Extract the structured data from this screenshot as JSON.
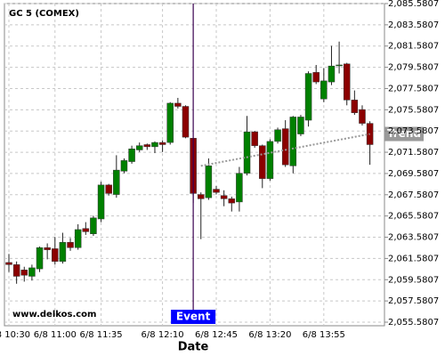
{
  "chart_data": {
    "type": "candlestick",
    "title": "GC 5 (COMEX)",
    "x_label": "Date",
    "watermark": "www.delkos.com",
    "categories": [
      "6/8 10:30",
      null,
      null,
      null,
      null,
      null,
      "6/8 11:00",
      null,
      null,
      null,
      null,
      null,
      "6/8 11:35",
      null,
      null,
      null,
      null,
      null,
      null,
      null,
      "6/8 12:10",
      null,
      null,
      null,
      null,
      null,
      null,
      "6/8 12:45",
      null,
      null,
      null,
      null,
      null,
      null,
      "6/8 13:20",
      null,
      null,
      null,
      null,
      null,
      null,
      "6/8 13:55",
      null,
      null,
      null,
      null,
      null,
      null
    ],
    "open": [
      2061.2,
      2061.0,
      2060.5,
      2059.9,
      2060.6,
      2062.6,
      2062.5,
      2061.3,
      2063.1,
      2062.6,
      2064.4,
      2063.9,
      2065.3,
      2068.5,
      2067.6,
      2069.8,
      2070.7,
      2071.8,
      2072.3,
      2072.1,
      2072.5,
      2072.5,
      2076.2,
      2075.9,
      2072.9,
      2067.6,
      2067.3,
      2068.1,
      2067.5,
      2067.2,
      2066.9,
      2069.6,
      2073.5,
      2072.2,
      2069.1,
      2072.6,
      2073.8,
      2070.3,
      2073.3,
      2074.6,
      2079.1,
      2076.6,
      2078.2,
      2079.8,
      2079.9,
      2076.5,
      2075.6,
      2074.3
    ],
    "high": [
      2062.0,
      2061.3,
      2060.8,
      2061.0,
      2062.7,
      2063.0,
      2063.6,
      2064.0,
      2063.5,
      2064.8,
      2065.0,
      2065.6,
      2068.8,
      2068.6,
      2071.3,
      2071.0,
      2072.2,
      2072.5,
      2072.4,
      2072.6,
      2072.7,
      2076.3,
      2076.7,
      2076.0,
      2072.9,
      2067.8,
      2071.0,
      2068.4,
      2068.0,
      2067.4,
      2070.2,
      2075.0,
      2073.6,
      2072.3,
      2072.8,
      2073.9,
      2074.6,
      2075.0,
      2075.1,
      2079.2,
      2079.8,
      2079.5,
      2081.6,
      2082.0,
      2080.0,
      2077.4,
      2076.0,
      2074.5
    ],
    "low": [
      2060.3,
      2059.2,
      2059.4,
      2059.5,
      2060.3,
      2061.5,
      2061.0,
      2061.1,
      2062.3,
      2062.4,
      2063.8,
      2063.7,
      2065.0,
      2067.5,
      2067.3,
      2069.6,
      2070.5,
      2071.6,
      2071.8,
      2071.5,
      2071.6,
      2072.3,
      2075.7,
      2072.9,
      2066.8,
      2063.4,
      2067.1,
      2067.6,
      2066.5,
      2066.0,
      2066.0,
      2069.4,
      2072.0,
      2068.2,
      2068.9,
      2072.4,
      2070.2,
      2069.6,
      2073.1,
      2074.0,
      2078.0,
      2076.3,
      2077.9,
      2079.0,
      2076.0,
      2075.1,
      2074.1,
      2070.4
    ],
    "close": [
      2061.0,
      2059.9,
      2060.0,
      2060.7,
      2062.6,
      2062.4,
      2061.3,
      2063.1,
      2062.6,
      2064.3,
      2064.1,
      2065.4,
      2068.5,
      2067.7,
      2069.9,
      2070.8,
      2071.9,
      2072.2,
      2072.1,
      2072.5,
      2072.3,
      2076.2,
      2075.9,
      2073.0,
      2067.7,
      2067.2,
      2070.3,
      2067.8,
      2067.2,
      2066.8,
      2069.6,
      2073.5,
      2072.2,
      2069.1,
      2072.6,
      2073.7,
      2070.4,
      2074.9,
      2074.9,
      2079.0,
      2078.2,
      2078.3,
      2079.7,
      2079.8,
      2076.5,
      2075.3,
      2074.3,
      2072.3
    ],
    "up_color": "#008000",
    "down_color": "#8b0000",
    "event": {
      "label": "Event",
      "x": 24,
      "color": "#3a0050",
      "box_color": "#0000ff"
    },
    "trend": {
      "label": "Trend",
      "x": [
        25,
        47
      ],
      "values": [
        2070.3,
        2073.3
      ],
      "color": "#999999"
    },
    "ylim": [
      2055.5807,
      2085.5807
    ],
    "yticks": [
      {
        "value": 2055.5807,
        "label": "2,055.5807"
      },
      {
        "value": 2057.5807,
        "label": "2,057.5807"
      },
      {
        "value": 2059.5807,
        "label": "2,059.5807"
      },
      {
        "value": 2061.5807,
        "label": "2,061.5807"
      },
      {
        "value": 2063.5807,
        "label": "2,063.5807"
      },
      {
        "value": 2065.5807,
        "label": "2,065.5807"
      },
      {
        "value": 2067.5807,
        "label": "2,067.5807"
      },
      {
        "value": 2069.5807,
        "label": "2,069.5807"
      },
      {
        "value": 2071.5807,
        "label": "2,071.5807"
      },
      {
        "value": 2073.5807,
        "label": "2,073.5807"
      },
      {
        "value": 2075.5807,
        "label": "2,075.5807"
      },
      {
        "value": 2077.5807,
        "label": "2,077.5807"
      },
      {
        "value": 2079.5807,
        "label": "2,079.5807"
      },
      {
        "value": 2081.5807,
        "label": "2,081.5807"
      },
      {
        "value": 2083.5807,
        "label": "2,083.5807"
      },
      {
        "value": 2085.5807,
        "label": "2,085.5807"
      }
    ],
    "grid": true
  }
}
